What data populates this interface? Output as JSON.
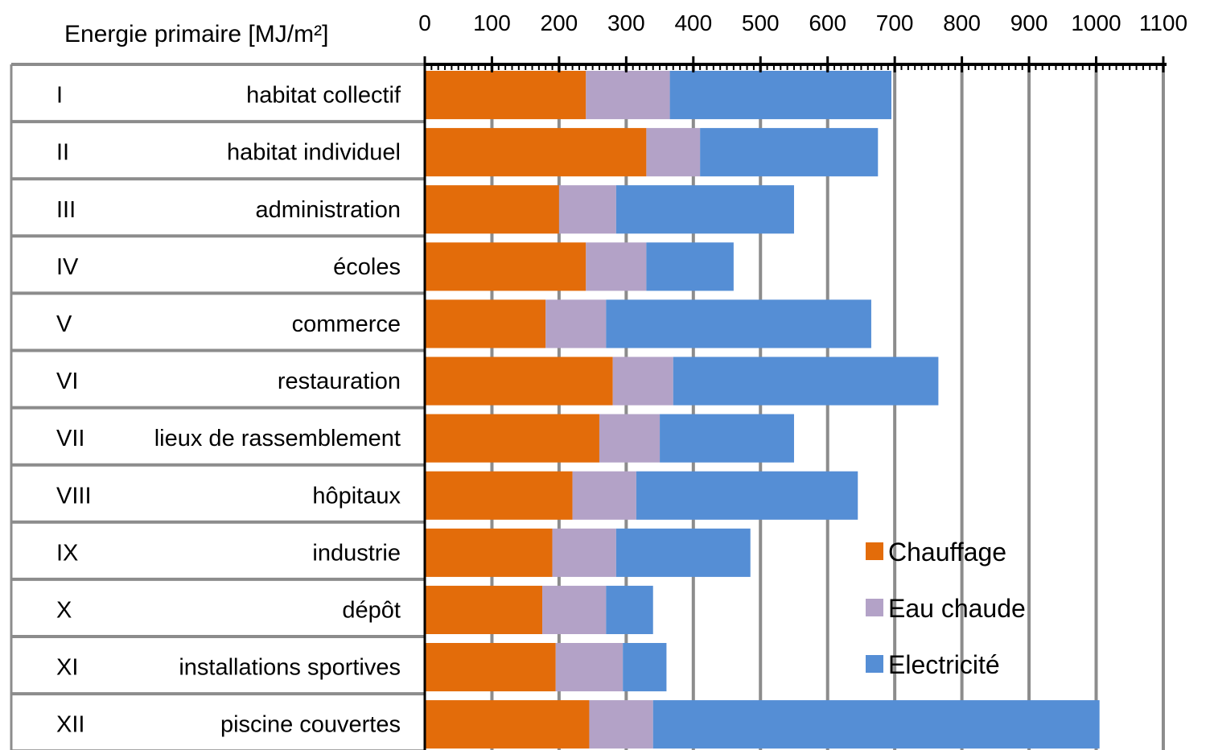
{
  "chart_data": {
    "type": "bar",
    "orientation": "horizontal",
    "stacked": true,
    "title": "Energie primaire [MJ/m²]",
    "xlabel": "",
    "ylabel": "",
    "xlim": [
      0,
      1100
    ],
    "x_ticks": [
      "0",
      "100",
      "200",
      "300",
      "400",
      "500",
      "600",
      "700",
      "800",
      "900",
      "1000",
      "1100"
    ],
    "grid": true,
    "legend_position": "bottom-right",
    "categories": [
      "habitat collectif",
      "habitat individuel",
      "administration",
      "écoles",
      "commerce",
      "restauration",
      "lieux de rassemblement",
      "hôpitaux",
      "industrie",
      "dépôt",
      "installations sportives",
      "piscine couvertes"
    ],
    "category_codes": [
      "I",
      "II",
      "III",
      "IV",
      "V",
      "VI",
      "VII",
      "VIII",
      "IX",
      "X",
      "XI",
      "XII"
    ],
    "series": [
      {
        "name": "Chauffage",
        "color": "#E36C0A",
        "values": [
          240,
          330,
          200,
          240,
          180,
          280,
          260,
          220,
          190,
          175,
          195,
          245
        ]
      },
      {
        "name": "Eau chaude",
        "color": "#B3A2C7",
        "values": [
          125,
          80,
          85,
          90,
          90,
          90,
          90,
          95,
          95,
          95,
          100,
          95
        ]
      },
      {
        "name": "Electricité",
        "color": "#558ED5",
        "values": [
          330,
          265,
          265,
          130,
          395,
          395,
          200,
          330,
          200,
          70,
          65,
          665
        ]
      }
    ]
  }
}
